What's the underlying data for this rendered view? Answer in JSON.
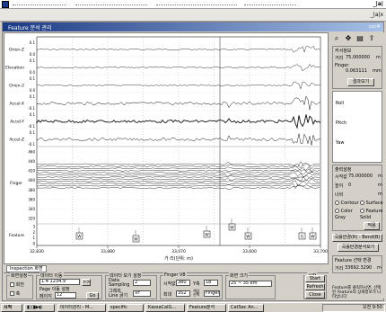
{
  "window": {
    "title": "Feature 분석 관리",
    "outer_min_label": "_|a|",
    "sub_buttons": "_|a|x"
  },
  "plot": {
    "channels": [
      {
        "name": "Orien-Z",
        "tick_hi": "0.1",
        "tick_lo": "0.0"
      },
      {
        "name": "Elevation",
        "tick_hi": "0.1",
        "tick_lo": "0.0"
      },
      {
        "name": "Orien-2",
        "tick_hi": "0.1",
        "tick_lo": "0.0"
      },
      {
        "name": "Accel-X",
        "tick_hi": "0.1",
        "tick_lo": "-0.1"
      },
      {
        "name": "Accel-Y",
        "tick_hi": "0.1",
        "tick_lo": "-0.1"
      },
      {
        "name": "Accel-Z",
        "tick_hi": "0.1",
        "tick_lo": "-0.1"
      }
    ],
    "finger": {
      "name": "Finger",
      "ticks": [
        "460",
        "440",
        "420",
        "400",
        "380",
        "360",
        "340",
        "320"
      ]
    },
    "feature": {
      "name": "Feature",
      "ticks": [
        "3",
        "2",
        "1",
        "0"
      ]
    },
    "x_ticks": [
      "32,830",
      "33,880",
      "33,070",
      "33,600",
      "33,700"
    ],
    "x_label": "거 리(단위: m)",
    "markers": [
      {
        "label": "W"
      },
      {
        "label": "W"
      },
      {
        "label": "W"
      },
      {
        "label": "W"
      },
      {
        "label": "W"
      },
      {
        "label": "G"
      },
      {
        "label": "W"
      }
    ]
  },
  "right_panel": {
    "toolbar": [
      "zoom-icon",
      "pan-icon",
      "print-icon",
      "export-icon"
    ],
    "info_title": "커서정보",
    "distance_label": "거리",
    "distance_value": "75.000000",
    "distance_unit": "m",
    "finger_label": "Finger",
    "finger_value": "0.063111",
    "finger_unit": "mm",
    "graph_button": "결과보기",
    "roll_label": "Roll",
    "pitch_label": "Pitch",
    "yaw_label": "Yaw",
    "section_title": "출력설정",
    "start_label": "시작값",
    "start_value": "75.000000",
    "start_unit": "m",
    "height_label": "높이",
    "height_value": "0",
    "height_unit": "m",
    "width_label": "너비",
    "width_unit": "m",
    "contour_label": "Contour",
    "surface_label": "Surface",
    "color_label": "Color",
    "color2_label": "Gray",
    "feature_label": "Feature",
    "solid_label": "Solid",
    "apply_button": "적용",
    "bend_button": "곡률반경(R) : Bend(B)",
    "view_bend_button": "곡률반경분석보기",
    "feature_sel_label": "Feature 선택 변경",
    "distance2_label": "거리",
    "distance2_value": "33692.3290",
    "distance2_unit": "m"
  },
  "bottom": {
    "tab_label": "Inspection 화면",
    "grp1": {
      "title": "화면설정",
      "opt1": "회전",
      "opt2": "축"
    },
    "grp2": {
      "title": "데이터 이동",
      "input1": "1.4  1234.9",
      "input1_btn": ">>",
      "label2": "Page 이동 설정",
      "label3": "페이지",
      "input3": "12",
      "btn3": "Go"
    },
    "grp3": {
      "title": "데이터 보기 설정",
      "label1": "Data Sampling",
      "input1": "2",
      "label2": "그래프 Line 굵기",
      "input2": "VF"
    },
    "grp4": {
      "title": "Finger V8",
      "label1": "시작값",
      "input1": "380",
      "label2": "최대",
      "input2": "352",
      "label3": "Y축",
      "input3": "18",
      "label4": "색상 선택",
      "input4": "Finger"
    },
    "grp5": {
      "title": "화면 크기",
      "input1": "25 ~ 35 km"
    },
    "grp6": {
      "title": "시작",
      "btn1": "Start",
      "btn2": "Refresh",
      "btn3": "Close"
    }
  },
  "note": "Feature를 클릭하시면, 선택된 Feature의 상세정보가 나타납니다",
  "taskbar": {
    "start": "시작",
    "tasks": [
      "데이터관리 - M...",
      "specific",
      "KassaCalG...",
      "Feature분석",
      "CatSec An..."
    ],
    "tray": "오전 9:50"
  }
}
